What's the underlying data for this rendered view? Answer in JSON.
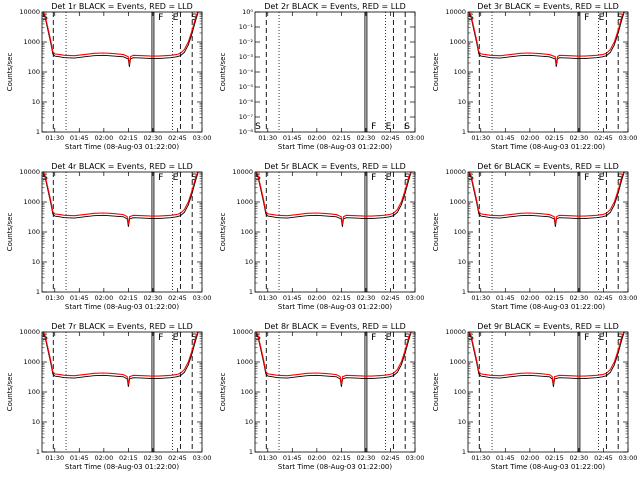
{
  "page": {
    "background": "#ffffff"
  },
  "colors": {
    "events": "#000000",
    "lld": "#ff0000",
    "axes": "#000000"
  },
  "chart_data": {
    "type": "line",
    "layout": "3x3 grid of panels",
    "xlabel": "Start Time (08-Aug-03 01:22:00)",
    "ylabel": "Counts/sec",
    "x_ticks": [
      "01:30",
      "01:45",
      "02:00",
      "02:15",
      "02:30",
      "02:45",
      "03:00"
    ],
    "x_tick_hours": [
      1.5,
      1.75,
      2.0,
      2.25,
      2.5,
      2.75,
      3.0
    ],
    "x_range_hours": [
      1.37,
      3.0
    ],
    "y_scale": "log",
    "y_range": [
      1,
      10000
    ],
    "y_ticks_std": [
      "1",
      "10",
      "100",
      "1000",
      "10000"
    ],
    "y_ticks_det2": [
      "10⁻⁸",
      "10⁻⁷",
      "10⁻⁶",
      "10⁻⁵",
      "10⁻⁴",
      "10⁻³",
      "10⁻²",
      "10⁻¹",
      "10⁰"
    ],
    "markers": {
      "solid": [
        2.49,
        2.51
      ],
      "dashed": [
        1.485,
        2.78,
        2.9
      ],
      "dotted": [
        1.615,
        2.7
      ],
      "letters": [
        {
          "t": "S",
          "x": 1.4
        },
        {
          "t": "F",
          "x": 2.58
        },
        {
          "t": "E",
          "x": 2.73
        },
        {
          "t": "S",
          "x": 2.92
        }
      ]
    },
    "panels": [
      {
        "title": "Det 1r BLACK = Events, RED = LLD",
        "scale": "std",
        "dip": 2.26,
        "flat": false
      },
      {
        "title": "Det 2r BLACK = Events, RED = LLD",
        "scale": "det2",
        "dip": null,
        "flat": true
      },
      {
        "title": "Det 3r BLACK = Events, RED = LLD",
        "scale": "std",
        "dip": 2.27,
        "flat": false
      },
      {
        "title": "Det 4r BLACK = Events, RED = LLD",
        "scale": "std",
        "dip": 2.25,
        "flat": false
      },
      {
        "title": "Det 5r BLACK = Events, RED = LLD",
        "scale": "std",
        "dip": 2.26,
        "flat": false
      },
      {
        "title": "Det 6r BLACK = Events, RED = LLD",
        "scale": "std",
        "dip": 2.26,
        "flat": false
      },
      {
        "title": "Det 7r BLACK = Events, RED = LLD",
        "scale": "std",
        "dip": 2.25,
        "flat": false
      },
      {
        "title": "Det 8r BLACK = Events, RED = LLD",
        "scale": "std",
        "dip": 2.25,
        "flat": false
      },
      {
        "title": "Det 9r BLACK = Events, RED = LLD",
        "scale": "std",
        "dip": 2.24,
        "flat": false
      }
    ],
    "series": [
      {
        "name": "Events",
        "color": "#000000",
        "x": [
          1.37,
          1.4,
          1.43,
          1.46,
          1.48,
          1.5,
          1.55,
          1.6,
          1.7,
          1.8,
          1.9,
          2.0,
          2.1,
          2.2,
          2.3,
          2.4,
          2.48,
          2.56,
          2.62,
          2.68,
          2.74,
          2.78,
          2.82,
          2.86,
          2.9,
          2.94,
          2.97
        ],
        "values": [
          12000,
          7000,
          2500,
          900,
          400,
          340,
          320,
          300,
          290,
          320,
          350,
          360,
          340,
          320,
          300,
          290,
          280,
          280,
          290,
          300,
          320,
          350,
          450,
          800,
          2000,
          6000,
          12000
        ]
      },
      {
        "name": "LLD",
        "color": "#ff0000",
        "x": [
          1.37,
          1.4,
          1.43,
          1.46,
          1.48,
          1.5,
          1.55,
          1.6,
          1.7,
          1.8,
          1.9,
          2.0,
          2.1,
          2.2,
          2.3,
          2.4,
          2.48,
          2.56,
          2.62,
          2.68,
          2.74,
          2.78,
          2.82,
          2.86,
          2.9,
          2.94,
          2.97
        ],
        "values": [
          12000,
          8000,
          3000,
          1100,
          480,
          400,
          380,
          360,
          350,
          380,
          420,
          430,
          410,
          380,
          360,
          350,
          340,
          340,
          350,
          360,
          380,
          420,
          560,
          1000,
          2500,
          7500,
          12000
        ]
      }
    ]
  }
}
